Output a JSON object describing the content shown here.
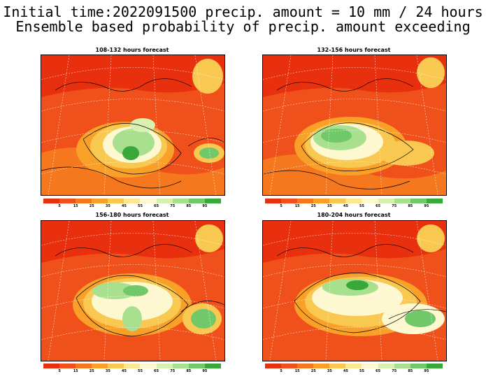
{
  "title": {
    "line1": "Initial time:2022091500 precip. amount = 10 mm / 24 hours",
    "line2": "Ensemble based probability of precip. amount exceeding"
  },
  "panels": [
    {
      "title": "108-132 hours forecast"
    },
    {
      "title": "132-156 hours forecast"
    },
    {
      "title": "156-180 hours forecast"
    },
    {
      "title": "180-204 hours forecast"
    }
  ],
  "colorbar": {
    "labels": [
      "5",
      "15",
      "25",
      "35",
      "45",
      "55",
      "65",
      "75",
      "85",
      "95"
    ],
    "colors": [
      "#e8300e",
      "#f0501a",
      "#f5781e",
      "#f8a028",
      "#f8c850",
      "#fbe890",
      "#fdf8d0",
      "#d8f0b0",
      "#a8e090",
      "#70c868",
      "#38a838"
    ]
  }
}
